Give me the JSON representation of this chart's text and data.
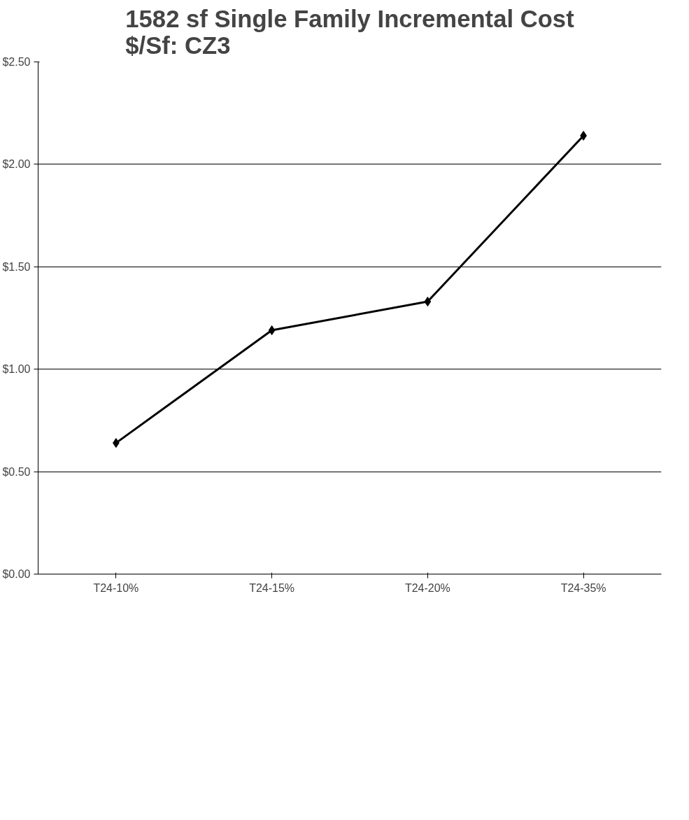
{
  "chart_data": {
    "type": "line",
    "title": "1582 sf Single Family Incremental Cost\n$/Sf: CZ3",
    "categories": [
      "T24-10%",
      "T24-15%",
      "T24-20%",
      "T24-35%"
    ],
    "series": [
      {
        "color": "#000000",
        "values": [
          0.64,
          1.19,
          1.33,
          2.14
        ]
      }
    ],
    "ylim": [
      0,
      2.5
    ],
    "yticks": [
      {
        "value": 0,
        "label": "$0.00"
      },
      {
        "value": 0.5,
        "label": "$0.50"
      },
      {
        "value": 1,
        "label": "$1.00"
      },
      {
        "value": 1.5,
        "label": "$1.50"
      },
      {
        "value": 2,
        "label": "$2.00"
      },
      {
        "value": 2.5,
        "label": "$2.50"
      }
    ],
    "grid": "y",
    "marker": "diamond",
    "line_style": "solid"
  }
}
